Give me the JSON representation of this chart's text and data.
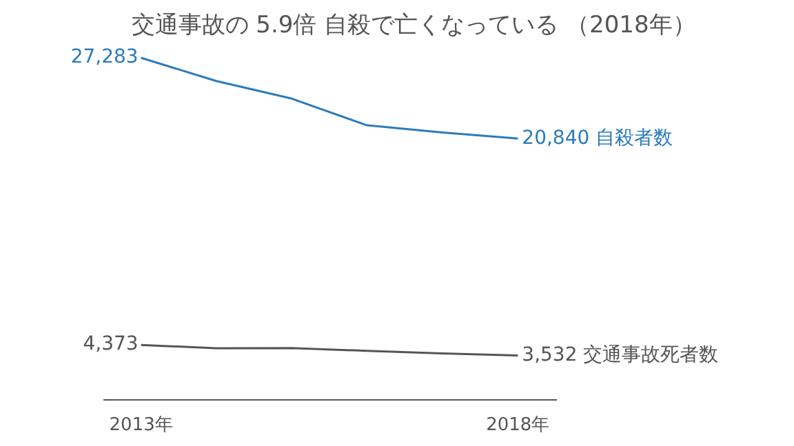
{
  "chart_data": {
    "type": "line",
    "title": "交通事故の 5.9倍 自殺で亡くなっている （2018年）",
    "categories": [
      "2013年",
      null,
      null,
      null,
      null,
      "2018年"
    ],
    "series": [
      {
        "name": "自殺者数",
        "color": "#2b7bba",
        "values": [
          27283,
          25427,
          24025,
          21897,
          21321,
          20840
        ],
        "value_labels": [
          "27,283",
          null,
          null,
          null,
          null,
          "20,840"
        ]
      },
      {
        "name": "交通事故死者数",
        "color": "#555555",
        "values": [
          4373,
          4113,
          4117,
          3904,
          3694,
          3532
        ],
        "value_labels": [
          "4,373",
          null,
          null,
          null,
          null,
          "3,532"
        ]
      }
    ]
  }
}
